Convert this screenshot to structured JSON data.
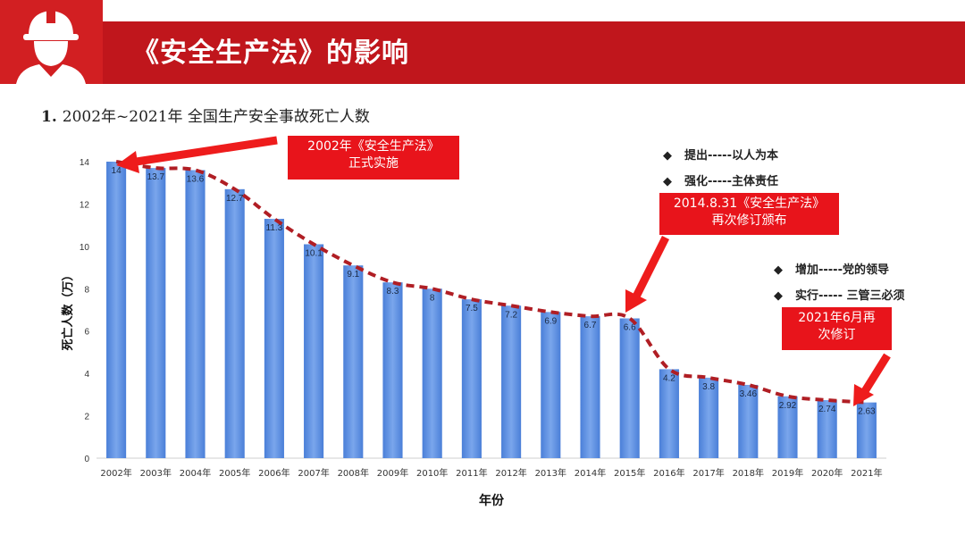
{
  "header": {
    "title": "《安全生产法》的影响"
  },
  "subtitle": {
    "number": "1.",
    "text": "2002年~2021年 全国生产安全事故死亡人数"
  },
  "colors": {
    "header_red": "#c0161c",
    "bar_blue": "#5b8fe0",
    "trend_red": "#b01e24",
    "callout_red": "#e8141b"
  },
  "chart_data": {
    "type": "bar",
    "categories": [
      "2002年",
      "2003年",
      "2004年",
      "2005年",
      "2006年",
      "2007年",
      "2008年",
      "2009年",
      "2010年",
      "2011年",
      "2012年",
      "2013年",
      "2014年",
      "2015年",
      "2016年",
      "2017年",
      "2018年",
      "2019年",
      "2020年",
      "2021年"
    ],
    "values": [
      14,
      13.7,
      13.6,
      12.7,
      11.3,
      10.1,
      9.1,
      8.3,
      8,
      7.5,
      7.2,
      6.9,
      6.7,
      6.6,
      4.2,
      3.8,
      3.46,
      2.92,
      2.74,
      2.63
    ],
    "value_labels": [
      "14",
      "13.7",
      "13.6",
      "12.7",
      "11.3",
      "10.1",
      "9.1",
      "8.3",
      "8",
      "7.5",
      "7.2",
      "6.9",
      "6.7",
      "6.6",
      "4.2",
      "3.8",
      "3.46",
      "2.92",
      "2.74",
      "2.63"
    ],
    "xlabel": "年份",
    "ylabel": "死亡人数（万）",
    "ylim": [
      0,
      14
    ],
    "yticks": [
      "0",
      "2",
      "4",
      "6",
      "8",
      "10",
      "12",
      "14"
    ],
    "trendline": "dashed smooth curve following bar tops"
  },
  "callouts": [
    {
      "lines": [
        "2002年《安全生产法》",
        "正式实施"
      ]
    },
    {
      "lines": [
        "2014.8.31《安全生产法》",
        "再次修订颁布"
      ]
    },
    {
      "lines": [
        "2021年6月再",
        "次修订"
      ]
    }
  ],
  "bullets_2014": [
    "提出-----以人为本",
    "强化-----主体责任"
  ],
  "bullets_2021": [
    "增加-----党的领导",
    "实行----- 三管三必须"
  ],
  "icons": {
    "header": "worker-hardhat-icon",
    "bullet": "diamond-bullet-icon",
    "arrow": "red-arrow-icon"
  }
}
